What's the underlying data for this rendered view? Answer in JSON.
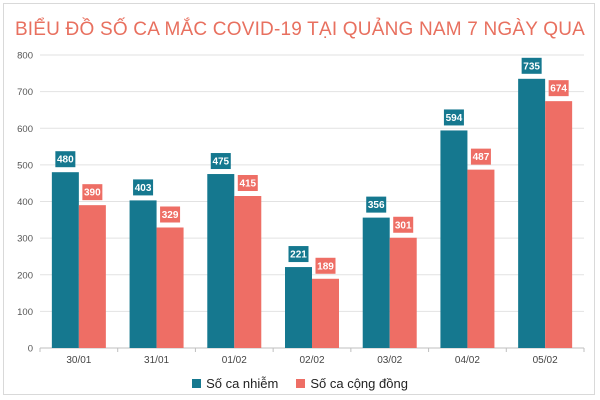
{
  "chart_data": {
    "type": "bar",
    "title": "BIỂU ĐỒ SỐ CA MẮC COVID-19 TẠI QUẢNG NAM 7 NGÀY QUA",
    "categories": [
      "30/01",
      "31/01",
      "01/02",
      "02/02",
      "03/02",
      "04/02",
      "05/02"
    ],
    "series": [
      {
        "name": "Số ca nhiễm",
        "color": "#15788f",
        "values": [
          480,
          403,
          475,
          221,
          356,
          594,
          735
        ]
      },
      {
        "name": "Số ca cộng đồng",
        "color": "#ee6e65",
        "values": [
          390,
          329,
          415,
          189,
          301,
          487,
          674
        ]
      }
    ],
    "ylim": [
      0,
      800
    ],
    "yticks": [
      0,
      100,
      200,
      300,
      400,
      500,
      600,
      700,
      800
    ],
    "grid": true,
    "legend_position": "bottom"
  }
}
